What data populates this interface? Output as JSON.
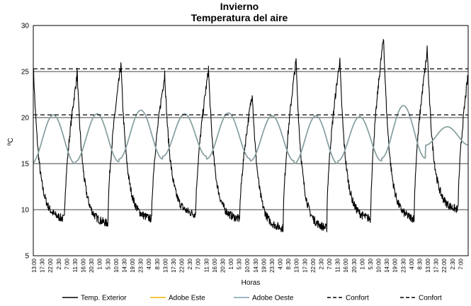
{
  "chart_data": {
    "type": "line",
    "title": "Invierno",
    "subtitle": "Temperatura del aire",
    "xlabel": "Horas",
    "ylabel": "ºC",
    "ylim": [
      5,
      30
    ],
    "yticks": [
      5,
      10,
      15,
      20,
      25,
      30
    ],
    "grid": "horizontal",
    "legend_position": "bottom",
    "x_tick_labels": [
      "13:00",
      "17:30",
      "22:00",
      "2:30",
      "7:00",
      "11:30",
      "16:00",
      "20:30",
      "1:00",
      "5:30",
      "10:00",
      "14:30",
      "19:00",
      "23:30",
      "4:00",
      "8:30",
      "13:00",
      "17:30",
      "22:00",
      "2:30",
      "7:00",
      "11:30",
      "16:00",
      "20:30",
      "1:00",
      "5:30",
      "10:00",
      "14:30",
      "19:00",
      "23:30",
      "4:00",
      "8:30",
      "13:00",
      "17:30",
      "22:00",
      "2:30",
      "7:00",
      "11:30",
      "16:00",
      "20:30",
      "1:00",
      "5:30",
      "10:00",
      "14:30",
      "19:00",
      "23:30",
      "4:00",
      "8:30",
      "13:00",
      "17:30",
      "22:00",
      "2:30",
      "7:00",
      "11:30"
    ],
    "x_hours_start": 13,
    "x_hours_span": 238.5,
    "x_tick_step_hours": 4.5,
    "series": [
      {
        "name": "Temp. Exterior",
        "color": "#000000",
        "dash": "solid",
        "daily_min_hour": 6,
        "daily_max_hour": 13,
        "daily_min": [
          8.0,
          9.0,
          8.5,
          9.0,
          9.5,
          9.0,
          8.0,
          8.0,
          9.0,
          9.0,
          10.0
        ],
        "daily_max": [
          25.0,
          25.0,
          24.5,
          25.5,
          24.5,
          25.0,
          22.5,
          26.0,
          26.0,
          28.5,
          27.0
        ]
      },
      {
        "name": "Adobe Este",
        "color": "#f2b300",
        "dash": "solid",
        "note": "hidden beneath Adobe Oeste",
        "daily_min_hour": 12,
        "daily_max_hour": 23,
        "daily_min": [
          15.8,
          15.0,
          15.2,
          15.5,
          15.8,
          15.5,
          15.3,
          15.0,
          15.3,
          15.6,
          17.0
        ],
        "daily_max": [
          20.0,
          20.3,
          20.4,
          20.8,
          20.4,
          20.5,
          20.2,
          20.2,
          20.1,
          21.3,
          19.0
        ]
      },
      {
        "name": "Adobe Oeste",
        "color": "#7f9fb2",
        "dash": "solid",
        "daily_min_hour": 12,
        "daily_max_hour": 23,
        "daily_min": [
          15.8,
          15.0,
          15.2,
          15.5,
          15.8,
          15.5,
          15.3,
          15.0,
          15.3,
          15.6,
          17.0
        ],
        "daily_max": [
          20.0,
          20.3,
          20.4,
          20.8,
          20.4,
          20.5,
          20.2,
          20.2,
          20.1,
          21.3,
          19.0
        ]
      },
      {
        "name": "Confort",
        "color": "#000000",
        "dash": "dashed",
        "constant": 25.3
      },
      {
        "name": "Confort",
        "color": "#000000",
        "dash": "dashed",
        "constant": 20.3
      }
    ]
  }
}
